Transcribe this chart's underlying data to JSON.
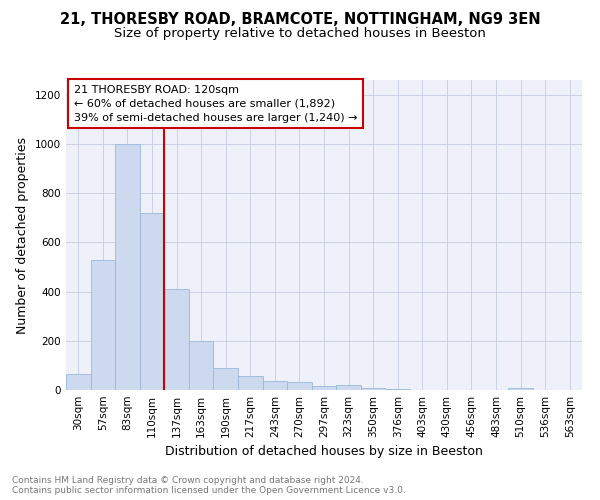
{
  "title": "21, THORESBY ROAD, BRAMCOTE, NOTTINGHAM, NG9 3EN",
  "subtitle": "Size of property relative to detached houses in Beeston",
  "xlabel": "Distribution of detached houses by size in Beeston",
  "ylabel": "Number of detached properties",
  "categories": [
    "30sqm",
    "57sqm",
    "83sqm",
    "110sqm",
    "137sqm",
    "163sqm",
    "190sqm",
    "217sqm",
    "243sqm",
    "270sqm",
    "297sqm",
    "323sqm",
    "350sqm",
    "376sqm",
    "403sqm",
    "430sqm",
    "456sqm",
    "483sqm",
    "510sqm",
    "536sqm",
    "563sqm"
  ],
  "values": [
    65,
    530,
    1000,
    720,
    410,
    198,
    90,
    58,
    38,
    32,
    18,
    20,
    8,
    3,
    2,
    1,
    1,
    0,
    10,
    1,
    1
  ],
  "bar_color": "#cdd9ee",
  "bar_edge_color": "#9ab8d8",
  "vline_color": "#cc0000",
  "annotation_lines": [
    "21 THORESBY ROAD: 120sqm",
    "← 60% of detached houses are smaller (1,892)",
    "39% of semi-detached houses are larger (1,240) →"
  ],
  "annotation_box_color": "#ffffff",
  "annotation_box_edge": "#cc0000",
  "ylim": [
    0,
    1260
  ],
  "yticks": [
    0,
    200,
    400,
    600,
    800,
    1000,
    1200
  ],
  "footnote": "Contains HM Land Registry data © Crown copyright and database right 2024.\nContains public sector information licensed under the Open Government Licence v3.0.",
  "bg_color": "#eef1fa",
  "grid_color": "#c5cde0",
  "title_fontsize": 10.5,
  "subtitle_fontsize": 9.5,
  "ylabel_fontsize": 9,
  "xlabel_fontsize": 9,
  "tick_fontsize": 7.5,
  "annotation_fontsize": 8,
  "footnote_fontsize": 6.5
}
